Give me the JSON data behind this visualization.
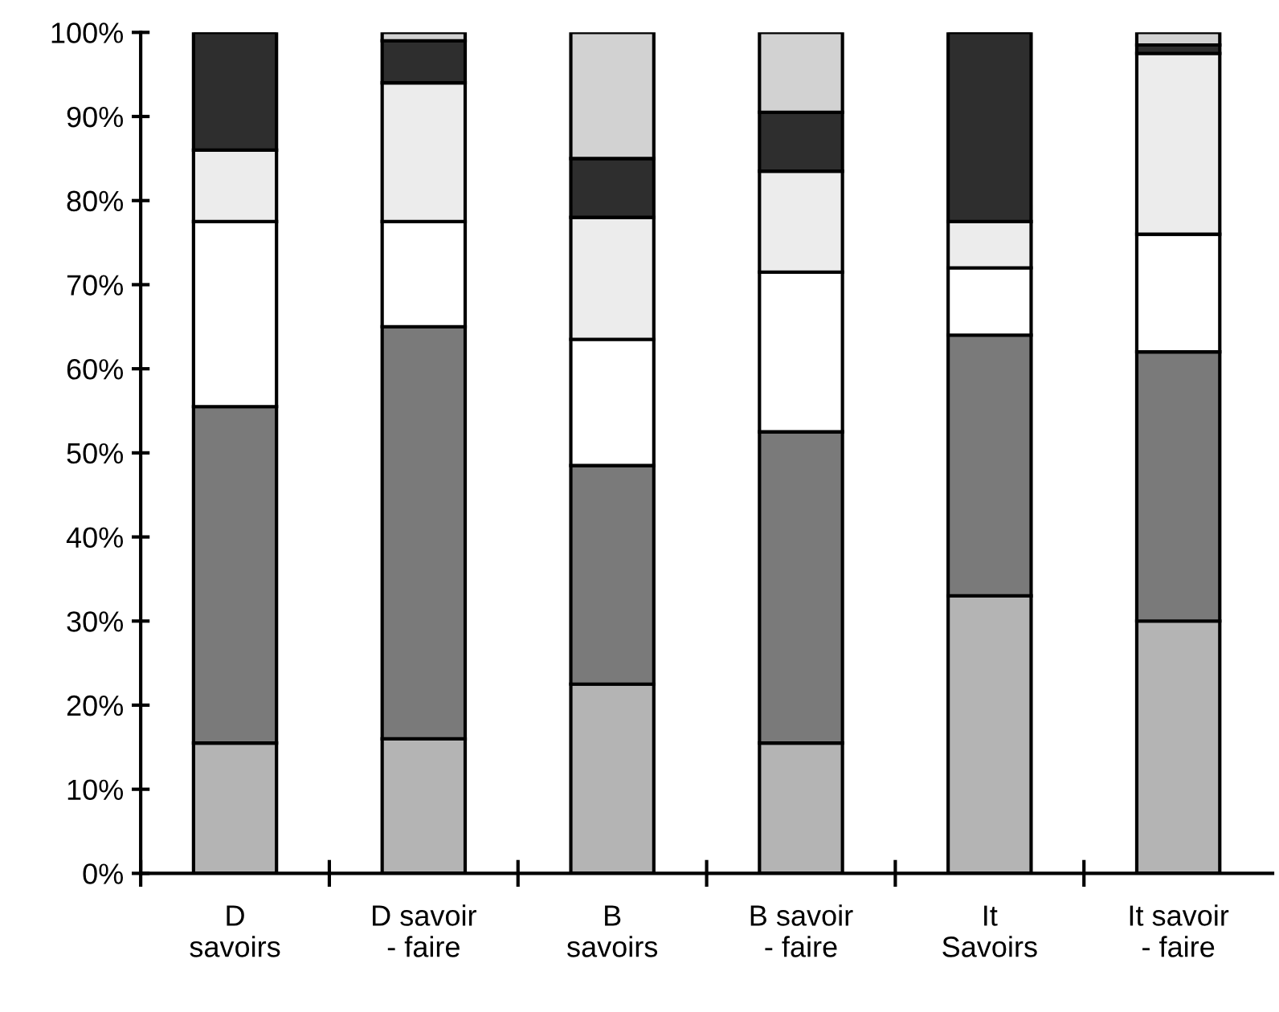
{
  "chart_data": {
    "type": "bar",
    "stacked": true,
    "categories": [
      "D\nsavoirs",
      "D savoir\n- faire",
      "B\nsavoirs",
      "B savoir\n- faire",
      "It\nSavoirs",
      "It savoir\n- faire"
    ],
    "series": [
      {
        "color": "#b4b4b4",
        "values": [
          15.5,
          16,
          22.5,
          15.5,
          33,
          30
        ]
      },
      {
        "color": "#7a7a7a",
        "values": [
          40,
          49,
          26,
          37,
          31,
          32
        ]
      },
      {
        "color": "#ffffff",
        "values": [
          22,
          12.5,
          15,
          19,
          8,
          14
        ]
      },
      {
        "color": "#ececec",
        "values": [
          8.5,
          16.5,
          14.5,
          12,
          5.5,
          21.5
        ]
      },
      {
        "color": "#2e2e2e",
        "values": [
          14,
          5,
          7,
          7,
          22.5,
          1
        ]
      },
      {
        "color": "#d2d2d2",
        "values": [
          null,
          1,
          15,
          9.5,
          null,
          1.5
        ]
      }
    ],
    "ylim": [
      0,
      100
    ],
    "yticks": [
      {
        "value": 0,
        "label": "0%"
      },
      {
        "value": 10,
        "label": "10%"
      },
      {
        "value": 20,
        "label": "20%"
      },
      {
        "value": 30,
        "label": "30%"
      },
      {
        "value": 40,
        "label": "40%"
      },
      {
        "value": 50,
        "label": "50%"
      },
      {
        "value": 60,
        "label": "60%"
      },
      {
        "value": 70,
        "label": "70%"
      },
      {
        "value": 80,
        "label": "80%"
      },
      {
        "value": 90,
        "label": "90%"
      },
      {
        "value": 100,
        "label": "100%"
      }
    ],
    "grid": false,
    "legend": false
  }
}
